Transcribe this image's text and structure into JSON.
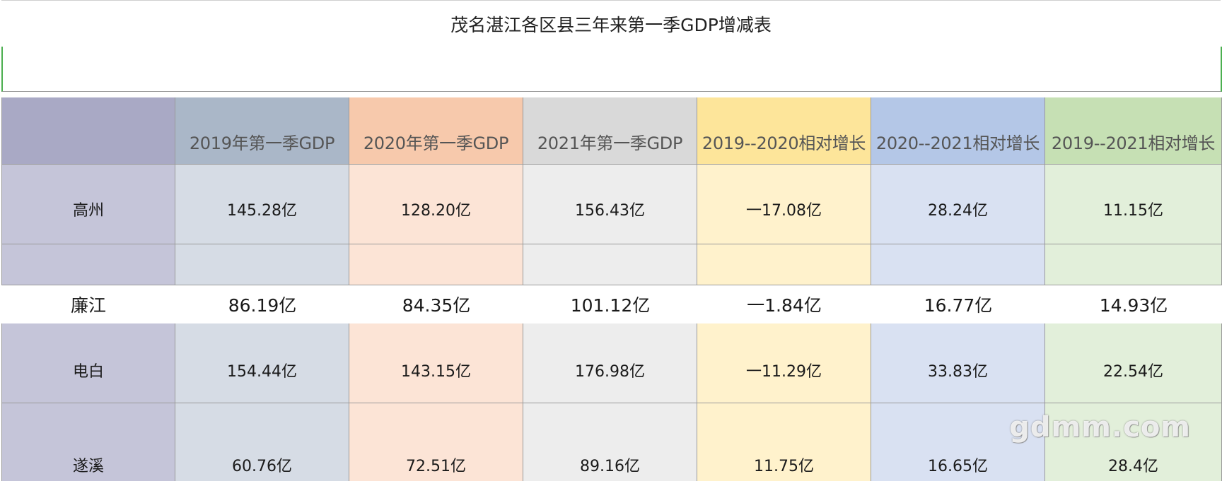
{
  "title": "茂名湛江各区县三年来第一季GDP增减表",
  "columns": [
    "",
    "2019年第一季GDP",
    "2020年第一季GDP",
    "2021年第一季GDP",
    "2019--2020相对增长",
    "2020--2021相对增长",
    "2019--2021相对增长"
  ],
  "rows": [
    {
      "name": "高州",
      "values": [
        "145.28亿",
        "128.20亿",
        "156.43亿",
        "一17.08亿",
        "28.24亿",
        "11.15亿"
      ]
    },
    {
      "name": "廉江",
      "values": [
        "86.19亿",
        "84.35亿",
        "101.12亿",
        "一1.84亿",
        "16.77亿",
        "14.93亿"
      ]
    },
    {
      "name": "电白",
      "values": [
        "154.44亿",
        "143.15亿",
        "176.98亿",
        "一11.29亿",
        "33.83亿",
        "22.54亿"
      ]
    },
    {
      "name": "遂溪",
      "values": [
        "60.76亿",
        "72.51亿",
        "89.16亿",
        "11.75亿",
        "16.65亿",
        "28.4亿"
      ]
    }
  ],
  "watermark": "gdmm.com",
  "colors": {
    "header": [
      "#a9a9c5",
      "#aab7c8",
      "#f7c9ac",
      "#d9d9d9",
      "#fde59a",
      "#b4c7e7",
      "#c6e0b4"
    ],
    "body": [
      "#c5c5d9",
      "#d6dce5",
      "#fce4d6",
      "#ededed",
      "#fff2cc",
      "#d9e1f2",
      "#e2efda"
    ],
    "selection_border": "#4caf50"
  }
}
